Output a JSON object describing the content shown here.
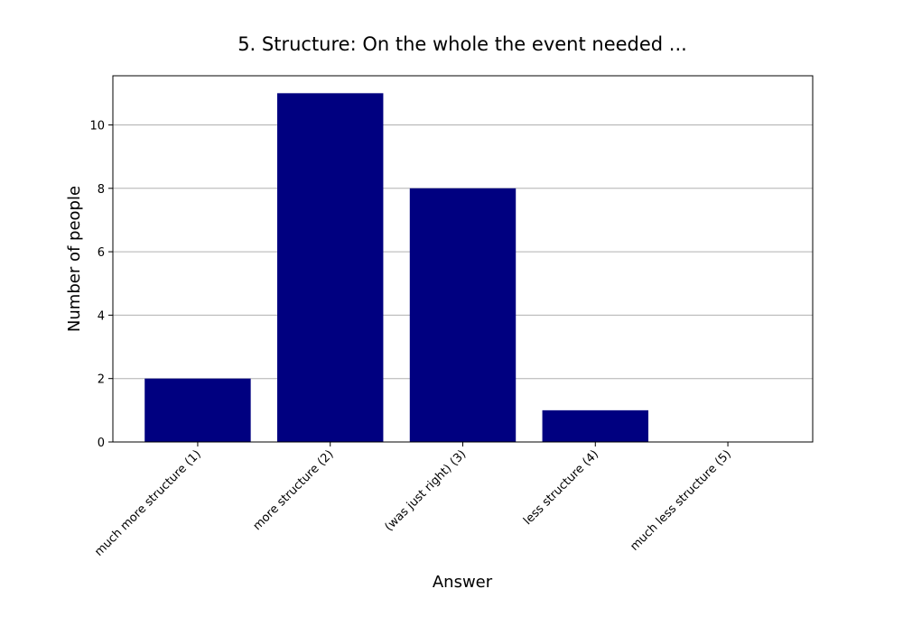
{
  "chart_data": {
    "type": "bar",
    "title": "5. Structure: On the whole the event needed ...",
    "xlabel": "Answer",
    "ylabel": "Number of people",
    "categories": [
      "much more structure (1)",
      "more structure (2)",
      "(was just right) (3)",
      "less structure (4)",
      "much less structure (5)"
    ],
    "values": [
      2,
      11,
      8,
      1,
      0
    ],
    "ylim": [
      0,
      11.55
    ],
    "yticks": [
      0,
      2,
      4,
      6,
      8,
      10
    ],
    "grid": "horizontal",
    "bar_color": "#000080",
    "grid_color": "#b0b0b0"
  }
}
